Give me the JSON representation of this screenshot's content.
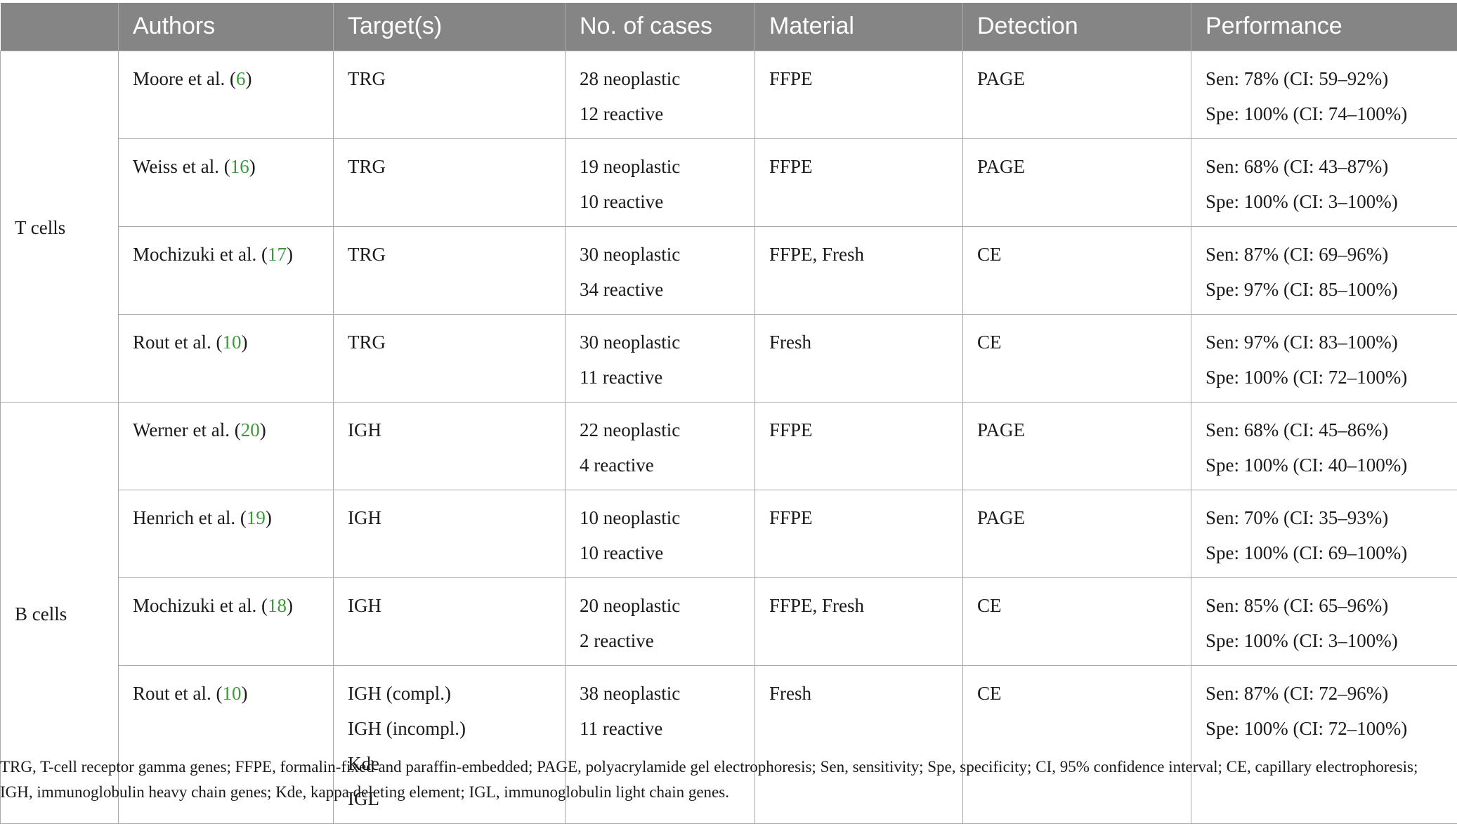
{
  "table": {
    "headers": [
      "",
      "Authors",
      "Target(s)",
      "No. of cases",
      "Material",
      "Detection",
      "Performance"
    ],
    "groups": [
      {
        "label": "T cells",
        "rows": [
          {
            "author": "Moore et al. (",
            "ref": "6",
            "author_end": ")",
            "targets": [
              "TRG"
            ],
            "cases": [
              "28 neoplastic",
              "12 reactive"
            ],
            "material": "FFPE",
            "detection": "PAGE",
            "performance": [
              "Sen: 78% (CI: 59–92%)",
              "Spe: 100% (CI: 74–100%)"
            ]
          },
          {
            "author": "Weiss et al. (",
            "ref": "16",
            "author_end": ")",
            "targets": [
              "TRG"
            ],
            "cases": [
              "19 neoplastic",
              "10 reactive"
            ],
            "material": "FFPE",
            "detection": "PAGE",
            "performance": [
              "Sen: 68% (CI: 43–87%)",
              "Spe: 100% (CI: 3–100%)"
            ]
          },
          {
            "author": "Mochizuki et al. (",
            "ref": "17",
            "author_end": ")",
            "targets": [
              "TRG"
            ],
            "cases": [
              "30 neoplastic",
              "34 reactive"
            ],
            "material": "FFPE, Fresh",
            "detection": "CE",
            "performance": [
              "Sen: 87% (CI: 69–96%)",
              "Spe: 97% (CI: 85–100%)"
            ]
          },
          {
            "author": "Rout et al. (",
            "ref": "10",
            "author_end": ")",
            "targets": [
              "TRG"
            ],
            "cases": [
              "30 neoplastic",
              "11 reactive"
            ],
            "material": "Fresh",
            "detection": "CE",
            "performance": [
              "Sen: 97% (CI: 83–100%)",
              "Spe: 100% (CI: 72–100%)"
            ]
          }
        ]
      },
      {
        "label": "B cells",
        "rows": [
          {
            "author": "Werner et al. (",
            "ref": "20",
            "author_end": ")",
            "targets": [
              "IGH"
            ],
            "cases": [
              "22 neoplastic",
              "4 reactive"
            ],
            "material": "FFPE",
            "detection": "PAGE",
            "performance": [
              "Sen: 68% (CI: 45–86%)",
              "Spe: 100% (CI: 40–100%)"
            ]
          },
          {
            "author": "Henrich et al. (",
            "ref": "19",
            "author_end": ")",
            "targets": [
              "IGH"
            ],
            "cases": [
              "10 neoplastic",
              "10 reactive"
            ],
            "material": "FFPE",
            "detection": "PAGE",
            "performance": [
              "Sen: 70% (CI: 35–93%)",
              "Spe: 100% (CI: 69–100%)"
            ]
          },
          {
            "author": "Mochizuki et al. (",
            "ref": "18",
            "author_end": ")",
            "targets": [
              "IGH"
            ],
            "cases": [
              "20 neoplastic",
              "2 reactive"
            ],
            "material": "FFPE, Fresh",
            "detection": "CE",
            "performance": [
              "Sen: 85% (CI: 65–96%)",
              "Spe: 100% (CI: 3–100%)"
            ]
          },
          {
            "author": "Rout et al. (",
            "ref": "10",
            "author_end": ")",
            "targets": [
              "IGH (compl.)",
              "IGH (incompl.)",
              "Kde",
              "IGL"
            ],
            "cases": [
              "38 neoplastic",
              "11 reactive"
            ],
            "material": "Fresh",
            "detection": "CE",
            "performance": [
              "Sen: 87% (CI: 72–96%)",
              "Spe: 100% (CI: 72–100%)"
            ]
          }
        ]
      }
    ]
  },
  "footnote": "TRG, T-cell receptor gamma genes; FFPE, formalin-fixed and paraffin-embedded; PAGE, polyacrylamide gel electrophoresis; Sen, sensitivity; Spe, specificity; CI, 95% confidence interval; CE, capillary electrophoresis; IGH, immunoglobulin heavy chain genes; Kde, kappa deleting element; IGL, immunoglobulin light chain genes."
}
